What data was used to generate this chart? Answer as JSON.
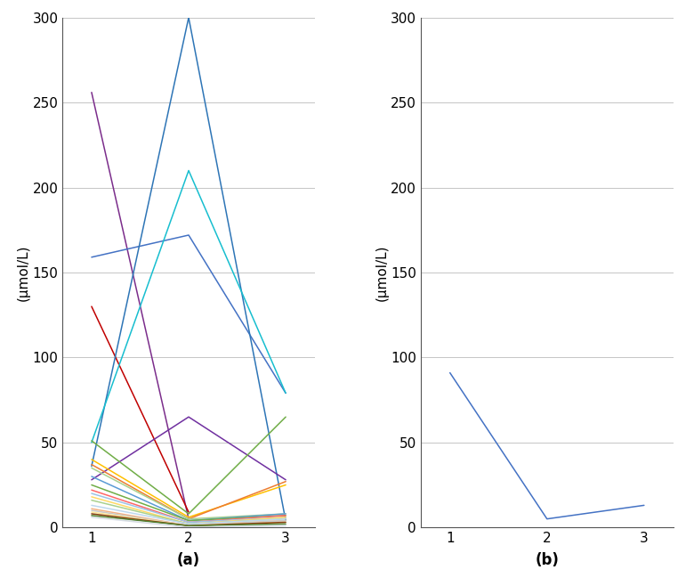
{
  "ylabel": "(μmol/L)",
  "xlabel_a": "(a)",
  "xlabel_b": "(b)",
  "ylim": [
    0,
    300
  ],
  "yticks": [
    0,
    50,
    100,
    150,
    200,
    250,
    300
  ],
  "xticks": [
    1,
    2,
    3
  ],
  "background_color": "#ffffff",
  "series_a": [
    {
      "x": [
        1,
        2
      ],
      "y": [
        256,
        5
      ],
      "color": "#7b2d8b"
    },
    {
      "x": [
        1,
        2,
        3
      ],
      "y": [
        159,
        172,
        79
      ],
      "color": "#4472c4"
    },
    {
      "x": [
        1,
        2
      ],
      "y": [
        130,
        9
      ],
      "color": "#c00000"
    },
    {
      "x": [
        1,
        2,
        3
      ],
      "y": [
        36,
        300,
        4
      ],
      "color": "#2e75b6"
    },
    {
      "x": [
        1,
        2,
        3
      ],
      "y": [
        50,
        210,
        79
      ],
      "color": "#17becf"
    },
    {
      "x": [
        1,
        2,
        3
      ],
      "y": [
        28,
        65,
        28
      ],
      "color": "#7030a0"
    },
    {
      "x": [
        1,
        2,
        3
      ],
      "y": [
        51,
        8,
        65
      ],
      "color": "#70ad47"
    },
    {
      "x": [
        1,
        2,
        3
      ],
      "y": [
        40,
        6,
        25
      ],
      "color": "#ffc000"
    },
    {
      "x": [
        1,
        2,
        3
      ],
      "y": [
        37,
        5,
        27
      ],
      "color": "#ed7d31"
    },
    {
      "x": [
        1,
        2,
        3
      ],
      "y": [
        35,
        5,
        8
      ],
      "color": "#a9d18e"
    },
    {
      "x": [
        1,
        2,
        3
      ],
      "y": [
        30,
        4,
        8
      ],
      "color": "#5b9bd5"
    },
    {
      "x": [
        1,
        2,
        3
      ],
      "y": [
        25,
        4,
        7
      ],
      "color": "#70ad47"
    },
    {
      "x": [
        1,
        2,
        3
      ],
      "y": [
        22,
        3,
        7
      ],
      "color": "#ff6666"
    },
    {
      "x": [
        1,
        2,
        3
      ],
      "y": [
        20,
        3,
        6
      ],
      "color": "#9dc3e6"
    },
    {
      "x": [
        1,
        2,
        3
      ],
      "y": [
        18,
        2,
        6
      ],
      "color": "#ffd966"
    },
    {
      "x": [
        1,
        2,
        3
      ],
      "y": [
        16,
        2,
        5
      ],
      "color": "#a9d18e"
    },
    {
      "x": [
        1,
        2,
        3
      ],
      "y": [
        13,
        2,
        5
      ],
      "color": "#bdd7ee"
    },
    {
      "x": [
        1,
        2,
        3
      ],
      "y": [
        11,
        1,
        4
      ],
      "color": "#f4b183"
    },
    {
      "x": [
        1,
        2,
        3
      ],
      "y": [
        10,
        1,
        4
      ],
      "color": "#c9c9c9"
    },
    {
      "x": [
        1,
        2,
        3
      ],
      "y": [
        9,
        1,
        3
      ],
      "color": "#ffe699"
    },
    {
      "x": [
        1,
        2,
        3
      ],
      "y": [
        8,
        1,
        3
      ],
      "color": "#843c0c"
    },
    {
      "x": [
        1,
        2,
        3
      ],
      "y": [
        7,
        1,
        2
      ],
      "color": "#548235"
    },
    {
      "x": [
        1,
        2,
        3
      ],
      "y": [
        6,
        0,
        1
      ],
      "color": "#d6dce4"
    }
  ],
  "series_b": [
    {
      "x": [
        1,
        2,
        3
      ],
      "y": [
        91,
        5,
        13
      ],
      "color": "#4472c4"
    }
  ],
  "grid_color": "#bbbbbb",
  "grid_linewidth": 0.6,
  "spine_color": "#555555",
  "tick_labelsize": 11,
  "label_fontsize": 11
}
